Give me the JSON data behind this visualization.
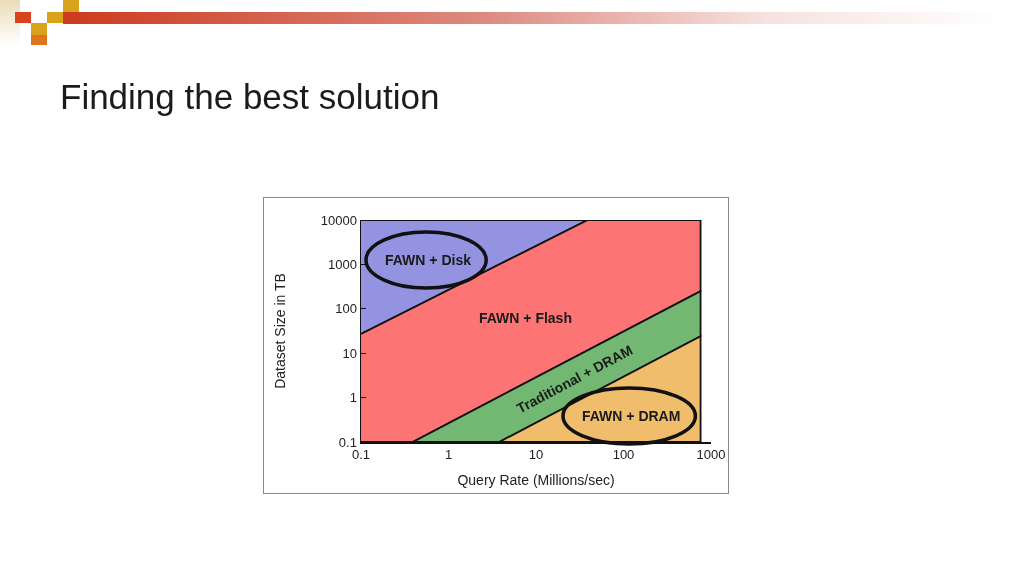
{
  "chart_data": {
    "type": "area",
    "title": "Finding the best solution",
    "xlabel": "Query Rate (Millions/sec)",
    "ylabel": "Dataset Size in TB",
    "log": "xy",
    "xlim": [
      0.1,
      1000
    ],
    "ylim": [
      0.1,
      10000
    ],
    "xticks": [
      0.1,
      1,
      10,
      100,
      1000
    ],
    "yticks": [
      0.1,
      1,
      10,
      100,
      1000,
      10000
    ],
    "series": [
      {
        "color": "#9393e2",
        "x": [
          0.1,
          760
        ],
        "values": [
          10000,
          10000
        ]
      },
      {
        "color": "#fd7474",
        "x": [
          0.1,
          39,
          760
        ],
        "values": [
          27,
          10000,
          10000
        ]
      },
      {
        "color": "#72b872",
        "x": [
          0.39,
          760
        ],
        "values": [
          0.1,
          250
        ]
      },
      {
        "color": "#efbd6c",
        "x": [
          3.8,
          760
        ],
        "values": [
          0.1,
          24
        ]
      }
    ],
    "annotations": [
      "FAWN + Disk",
      "FAWN + Flash",
      "Traditional + DRAM",
      "FAWN + DRAM"
    ]
  }
}
